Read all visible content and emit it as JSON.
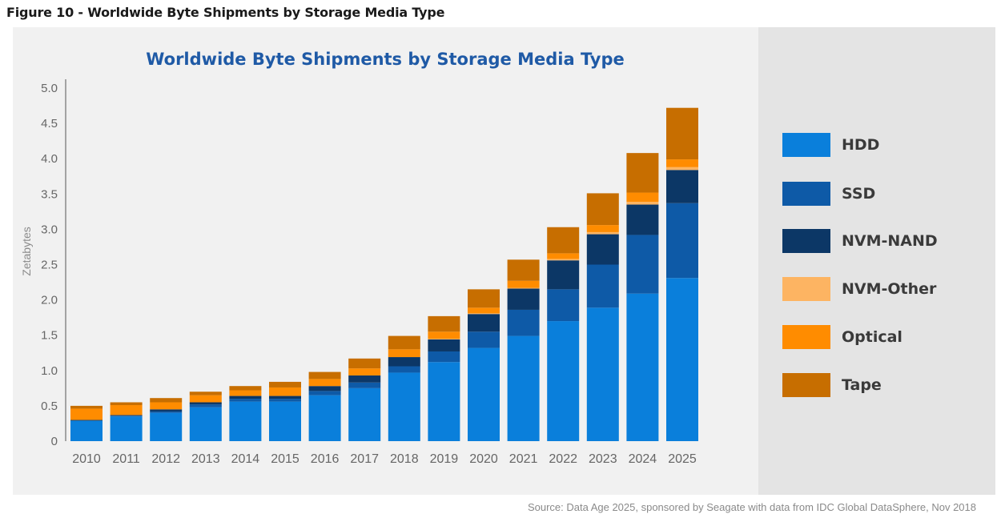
{
  "figure_caption": "Figure 10 - Worldwide Byte Shipments by Storage Media Type",
  "source_note": "Source: Data Age 2025, sponsored by Seagate with data from IDC Global DataSphere, Nov 2018",
  "chart_data": {
    "type": "bar",
    "stacked": true,
    "title": "Worldwide Byte Shipments by Storage Media Type",
    "xlabel": "",
    "ylabel": "Zetabytes",
    "ylim": [
      0,
      5.0
    ],
    "yticks": [
      0,
      0.5,
      1.0,
      1.5,
      2.0,
      2.5,
      3.0,
      3.5,
      4.0,
      4.5,
      5.0
    ],
    "ytick_labels": [
      "0",
      "0.5",
      "1.0",
      "1.5",
      "2.0",
      "2.5",
      "3.0",
      "3.5",
      "4.0",
      "4.5",
      "5.0"
    ],
    "grid": false,
    "legend_position": "right",
    "categories": [
      "2010",
      "2011",
      "2012",
      "2013",
      "2014",
      "2015",
      "2016",
      "2017",
      "2018",
      "2019",
      "2020",
      "2021",
      "2022",
      "2023",
      "2024",
      "2025"
    ],
    "series": [
      {
        "name": "HDD",
        "color": "#0a7fdb",
        "values": [
          0.29,
          0.35,
          0.4,
          0.48,
          0.56,
          0.56,
          0.65,
          0.75,
          0.97,
          1.12,
          1.32,
          1.49,
          1.7,
          1.89,
          2.09,
          2.31
        ]
      },
      {
        "name": "SSD",
        "color": "#0e5aa7",
        "values": [
          0.0,
          0.01,
          0.02,
          0.04,
          0.04,
          0.04,
          0.06,
          0.08,
          0.09,
          0.15,
          0.23,
          0.37,
          0.45,
          0.61,
          0.83,
          1.06
        ]
      },
      {
        "name": "NVM-NAND",
        "color": "#0c3766",
        "values": [
          0.01,
          0.01,
          0.03,
          0.03,
          0.04,
          0.04,
          0.07,
          0.1,
          0.13,
          0.17,
          0.25,
          0.3,
          0.41,
          0.43,
          0.43,
          0.47
        ]
      },
      {
        "name": "NVM-Other",
        "color": "#fdb462",
        "values": [
          0.0,
          0.0,
          0.0,
          0.0,
          0.0,
          0.0,
          0.0,
          0.0,
          0.0,
          0.01,
          0.01,
          0.01,
          0.02,
          0.03,
          0.04,
          0.04
        ]
      },
      {
        "name": "Optical",
        "color": "#ff8c00",
        "values": [
          0.16,
          0.14,
          0.1,
          0.1,
          0.08,
          0.12,
          0.1,
          0.1,
          0.11,
          0.1,
          0.08,
          0.1,
          0.08,
          0.1,
          0.13,
          0.11
        ]
      },
      {
        "name": "Tape",
        "color": "#c76e00",
        "values": [
          0.04,
          0.04,
          0.06,
          0.05,
          0.06,
          0.08,
          0.1,
          0.14,
          0.19,
          0.22,
          0.26,
          0.3,
          0.37,
          0.45,
          0.56,
          0.73
        ]
      }
    ]
  }
}
